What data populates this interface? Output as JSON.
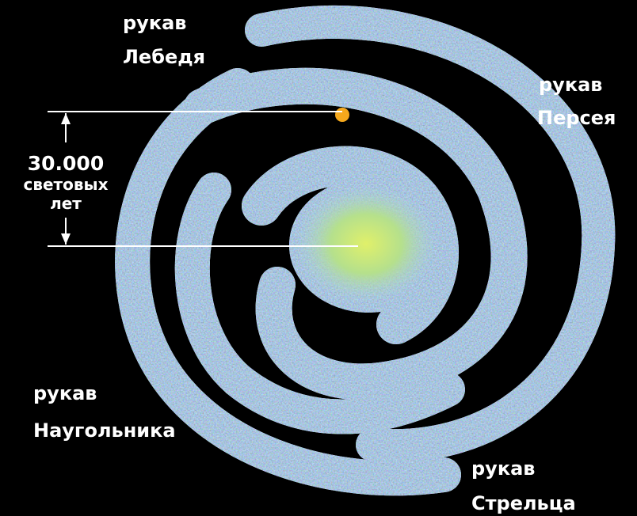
{
  "labels": [
    {
      "lines": [
        "рукав",
        "Лебедя"
      ]
    },
    {
      "lines": [
        "рукав",
        "Персея"
      ]
    },
    {
      "lines": [
        "рукав",
        "Наугольника"
      ]
    },
    {
      "lines": [
        "рукав",
        "Стрельца"
      ]
    }
  ],
  "scale": {
    "lines": [
      "30.000",
      "световых",
      "лет"
    ]
  }
}
